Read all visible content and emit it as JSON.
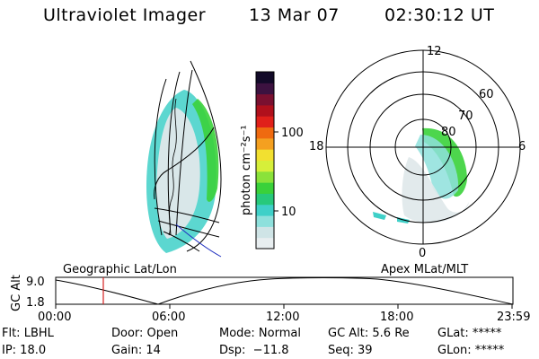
{
  "header": {
    "title": "Ultraviolet Imager",
    "date": "13 Mar 07",
    "time": "02:30:12 UT"
  },
  "colorbar": {
    "unit_label": "photon cm⁻²s⁻¹",
    "tick_100": "100",
    "tick_10": "10",
    "colors": [
      "#e8eef0",
      "#cfe4e6",
      "#8ee0dc",
      "#3fd0c8",
      "#27c97b",
      "#3ad13a",
      "#8ae23a",
      "#d6ef3a",
      "#f2e030",
      "#f4a020",
      "#ef6a10",
      "#e0201a",
      "#b0101c",
      "#7a1030",
      "#3c1240",
      "#120a28"
    ]
  },
  "polar": {
    "label_top": "12",
    "label_left": "18",
    "label_right": "6",
    "label_bottom": "0",
    "ring_60": "60",
    "ring_70": "70",
    "ring_80": "80"
  },
  "orbit": {
    "left_label": "Geographic Lat/Lon",
    "right_label": "Apex MLat/MLT",
    "y_axis": "GC Alt",
    "y_top": "9.0",
    "y_bottom": "1.8",
    "x_ticks": [
      "00:00",
      "06:00",
      "12:00",
      "18:00",
      "23:59"
    ]
  },
  "status": {
    "flt": "Flt: LBHL",
    "ip": "IP: 18.0",
    "door": "Door: Open",
    "gain": "Gain: 14",
    "mode": "Mode: Normal",
    "dsp": "Dsp:  −11.8",
    "gc_alt": "GC Alt: 5.6 Re",
    "seq": "Seq: 39",
    "glat": "GLat: *****",
    "glon": "GLon: *****"
  },
  "colors": {
    "marker": "#d42020",
    "coast_blue": "#2030c0",
    "aurora_green": "#3ad13a",
    "aurora_cyan": "#3fd0c8"
  }
}
